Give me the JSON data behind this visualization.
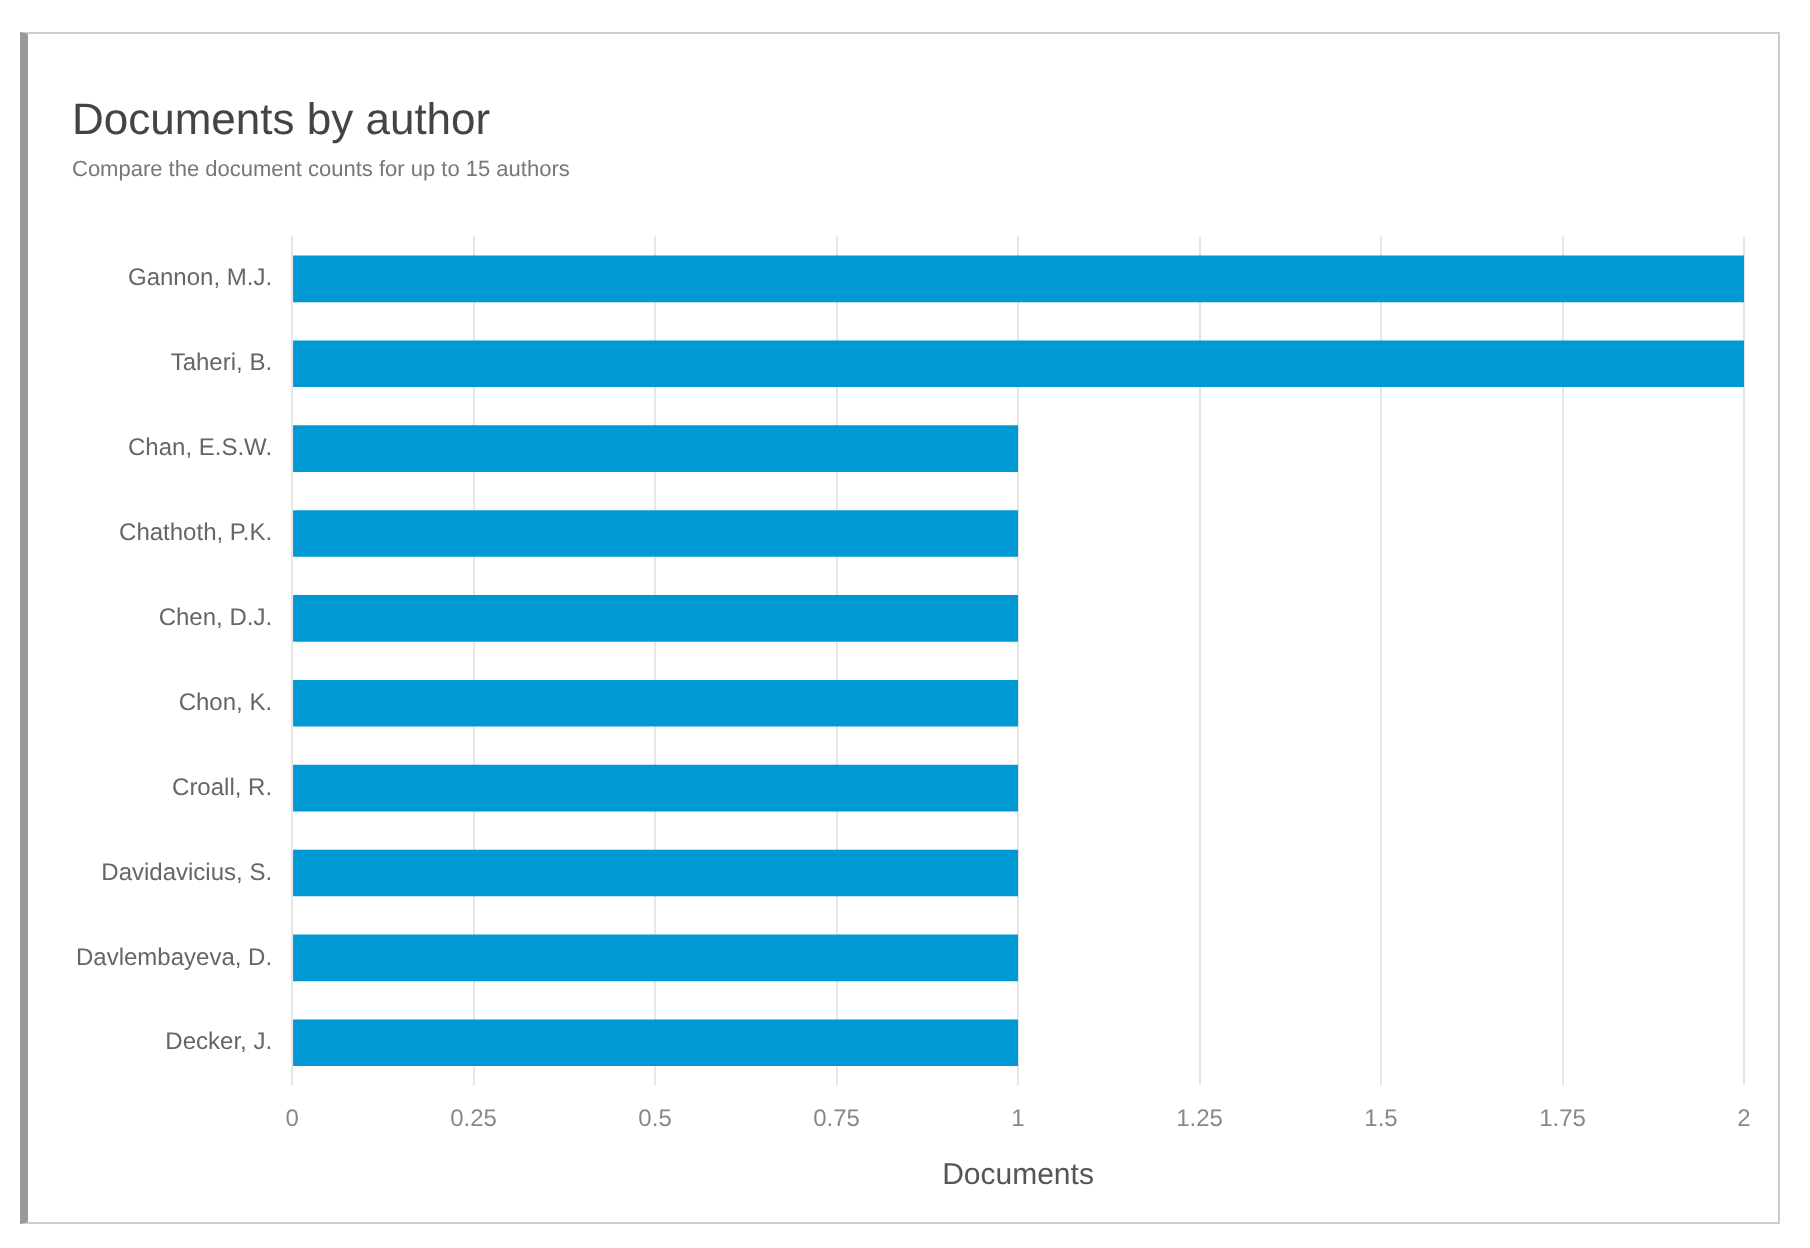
{
  "chart_data": {
    "type": "bar",
    "orientation": "horizontal",
    "title": "Documents by author",
    "subtitle": "Compare the document counts for up to 15 authors",
    "xlabel": "Documents",
    "categories": [
      "Gannon, M.J.",
      "Taheri, B.",
      "Chan, E.S.W.",
      "Chathoth, P.K.",
      "Chen, D.J.",
      "Chon, K.",
      "Croall, R.",
      "Davidavicius, S.",
      "Davlembayeva, D.",
      "Decker, J."
    ],
    "values": [
      2,
      2,
      1,
      1,
      1,
      1,
      1,
      1,
      1,
      1
    ],
    "color": "#0099d4",
    "xlim": [
      0,
      2
    ],
    "xticks": [
      0,
      0.25,
      0.5,
      0.75,
      1,
      1.25,
      1.5,
      1.75,
      2
    ],
    "grid": "x",
    "legend": false
  }
}
